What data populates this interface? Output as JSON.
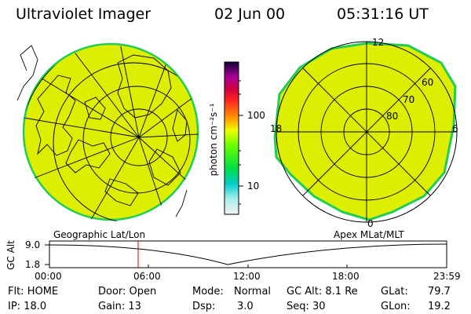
{
  "header": {
    "instrument": "Ultraviolet Imager",
    "date": "02 Jun 00",
    "time": "05:31:16 UT"
  },
  "colorbar": {
    "unit_label": "photon cm⁻²s⁻¹",
    "ticks": [
      "100",
      "10"
    ]
  },
  "left_panel": {
    "caption": "Geographic Lat/Lon"
  },
  "right_panel": {
    "caption": "Apex MLat/MLT",
    "mlt_labels": {
      "top": "12",
      "bottom": "0",
      "left": "18",
      "right": "6"
    },
    "mlat_labels": [
      "60",
      "70",
      "80"
    ]
  },
  "altitude_plot": {
    "axis_title": "GC Alt",
    "y_ticks": [
      "9.0",
      "1.8"
    ],
    "x_ticks": [
      "00:00",
      "06:00",
      "12:00",
      "18:00",
      "23:59"
    ],
    "marker_time": "05:31"
  },
  "status": {
    "row1": {
      "flt": "Flt: HOME",
      "door": "Door: Open",
      "mode_label": "Mode:",
      "mode_value": "Normal",
      "gcalt": "GC Alt: 8.1 Re",
      "glat_label": "GLat:",
      "glat_value": "79.7"
    },
    "row2": {
      "ip": "IP: 18.0",
      "gain": "Gain: 13",
      "dsp_label": "Dsp:",
      "dsp_value": "3.0",
      "seq": "Seq: 30",
      "glon_label": "GLon:",
      "glon_value": "19.2"
    }
  },
  "colors": {
    "aurora": "#ddee00",
    "aurora_edge": "#22cc55",
    "marker": "#cc0000"
  }
}
